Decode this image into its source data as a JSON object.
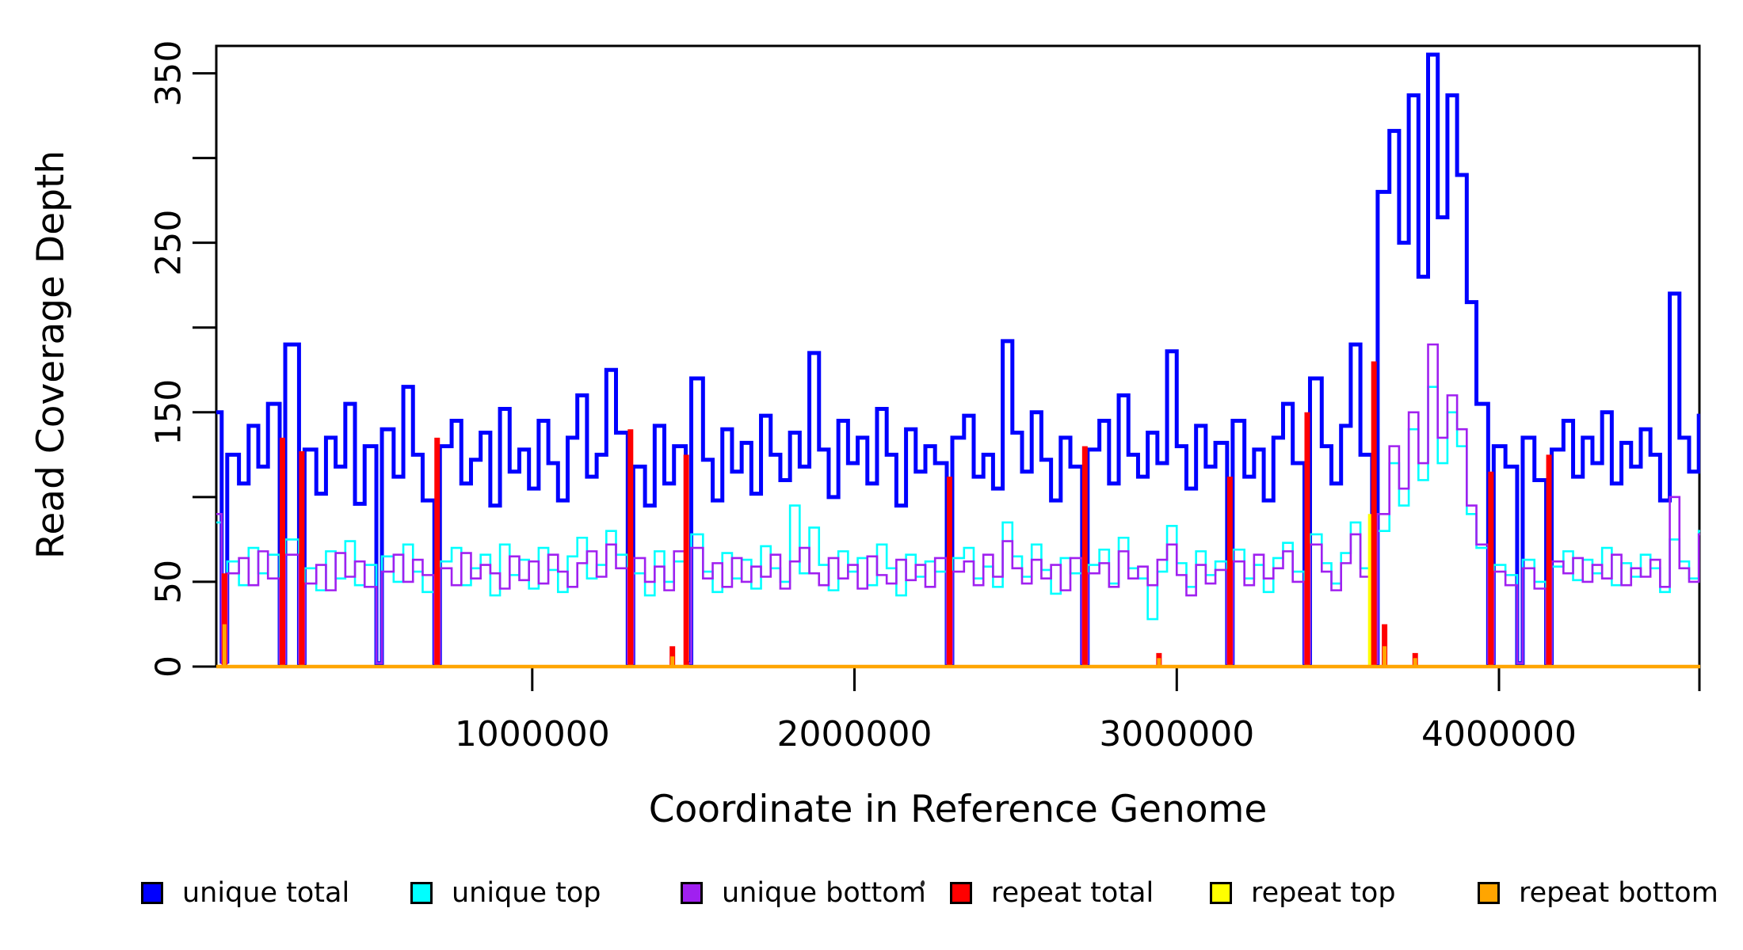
{
  "figure": {
    "background": "#ffffff",
    "axis_color": "#000000"
  },
  "chart_data": {
    "type": "line",
    "subtype": "step-coverage",
    "title": "",
    "xlabel": "Coordinate in Reference Genome",
    "ylabel": "Read Coverage Depth",
    "xlim": [
      0,
      4650000
    ],
    "ylim": [
      0,
      366
    ],
    "grid": false,
    "legend_position": "bottom",
    "bin_size": 30000,
    "x_ticks": [
      {
        "v": 1000000,
        "label": "1000000"
      },
      {
        "v": 2000000,
        "label": "2000000"
      },
      {
        "v": 3000000,
        "label": "3000000"
      },
      {
        "v": 4000000,
        "label": "4000000"
      },
      {
        "v": 4640000,
        "label": ""
      }
    ],
    "y_ticks": [
      {
        "v": 0,
        "label": "0"
      },
      {
        "v": 50,
        "label": "50"
      },
      {
        "v": 100,
        "label": ""
      },
      {
        "v": 150,
        "label": "150"
      },
      {
        "v": 200,
        "label": ""
      },
      {
        "v": 250,
        "label": "250"
      },
      {
        "v": 300,
        "label": ""
      },
      {
        "v": 350,
        "label": "350"
      }
    ],
    "series": [
      {
        "name": "unique total",
        "color": "#0000FF",
        "width": 5,
        "values": [
          150,
          3,
          125,
          108,
          142,
          118,
          155,
          2,
          190,
          2,
          128,
          102,
          135,
          118,
          155,
          96,
          130,
          2,
          140,
          112,
          165,
          125,
          98,
          2,
          130,
          145,
          108,
          122,
          138,
          95,
          152,
          115,
          128,
          105,
          145,
          120,
          98,
          135,
          160,
          112,
          125,
          175,
          138,
          2,
          118,
          95,
          142,
          108,
          130,
          2,
          170,
          122,
          98,
          140,
          115,
          132,
          102,
          148,
          125,
          110,
          138,
          118,
          185,
          128,
          100,
          145,
          120,
          135,
          108,
          152,
          125,
          95,
          140,
          115,
          130,
          120,
          2,
          135,
          148,
          112,
          125,
          105,
          192,
          138,
          115,
          150,
          122,
          98,
          135,
          118,
          2,
          128,
          145,
          108,
          160,
          125,
          112,
          138,
          120,
          186,
          130,
          105,
          142,
          118,
          132,
          2,
          145,
          112,
          128,
          98,
          135,
          155,
          120,
          2,
          170,
          130,
          108,
          142,
          190,
          125,
          2,
          280,
          316,
          250,
          337,
          230,
          361,
          265,
          337,
          290,
          215,
          155,
          2,
          130,
          118,
          2,
          135,
          110,
          2,
          128,
          145,
          112,
          135,
          120,
          150,
          108,
          132,
          118,
          140,
          125,
          98,
          220,
          135,
          115,
          148
        ]
      },
      {
        "name": "unique top",
        "color": "#00FFFF",
        "width": 2.6,
        "values": [
          85,
          2,
          62,
          48,
          70,
          55,
          66,
          2,
          75,
          2,
          58,
          45,
          68,
          52,
          74,
          48,
          60,
          2,
          65,
          50,
          72,
          56,
          44,
          2,
          62,
          70,
          48,
          58,
          66,
          42,
          72,
          54,
          63,
          46,
          70,
          57,
          44,
          65,
          76,
          52,
          60,
          80,
          66,
          2,
          55,
          42,
          68,
          50,
          62,
          2,
          78,
          56,
          44,
          67,
          52,
          63,
          46,
          71,
          58,
          50,
          95,
          55,
          82,
          60,
          45,
          68,
          56,
          64,
          48,
          72,
          58,
          42,
          66,
          53,
          62,
          56,
          2,
          64,
          70,
          52,
          59,
          47,
          85,
          65,
          53,
          72,
          57,
          43,
          64,
          55,
          2,
          60,
          69,
          49,
          76,
          58,
          52,
          28,
          56,
          83,
          61,
          47,
          68,
          54,
          62,
          2,
          69,
          52,
          60,
          44,
          64,
          73,
          56,
          2,
          78,
          61,
          49,
          67,
          85,
          58,
          2,
          80,
          120,
          95,
          140,
          110,
          165,
          120,
          150,
          130,
          90,
          70,
          2,
          60,
          54,
          2,
          63,
          50,
          2,
          59,
          68,
          51,
          63,
          55,
          70,
          48,
          61,
          53,
          66,
          58,
          44,
          75,
          62,
          52,
          80
        ]
      },
      {
        "name": "unique bottom",
        "color": "#A020F0",
        "width": 2.6,
        "values": [
          90,
          2,
          55,
          64,
          48,
          68,
          52,
          2,
          66,
          2,
          49,
          60,
          45,
          67,
          53,
          62,
          47,
          2,
          56,
          66,
          50,
          63,
          54,
          2,
          58,
          48,
          67,
          52,
          60,
          55,
          46,
          65,
          51,
          62,
          49,
          66,
          56,
          47,
          61,
          68,
          53,
          72,
          58,
          2,
          64,
          50,
          59,
          45,
          68,
          2,
          70,
          52,
          61,
          47,
          64,
          50,
          59,
          53,
          66,
          46,
          62,
          70,
          55,
          48,
          64,
          52,
          60,
          46,
          65,
          54,
          49,
          63,
          51,
          60,
          47,
          64,
          2,
          56,
          62,
          48,
          66,
          53,
          74,
          58,
          49,
          63,
          52,
          60,
          45,
          64,
          2,
          55,
          61,
          47,
          68,
          52,
          59,
          48,
          63,
          72,
          54,
          42,
          60,
          49,
          57,
          2,
          62,
          48,
          66,
          52,
          58,
          68,
          50,
          2,
          72,
          56,
          45,
          61,
          78,
          53,
          2,
          90,
          130,
          105,
          150,
          120,
          190,
          135,
          160,
          140,
          95,
          72,
          2,
          56,
          48,
          2,
          58,
          46,
          2,
          62,
          55,
          64,
          50,
          60,
          52,
          66,
          48,
          58,
          53,
          63,
          47,
          100,
          58,
          50,
          78
        ]
      }
    ],
    "repeat": {
      "note": "repeat series lie on zero baseline except at spikes",
      "colors": {
        "total": "#FF0000",
        "top": "#FFFF00",
        "bottom": "#FFA500"
      },
      "baseline": 0,
      "spikes": [
        {
          "x": 45000,
          "total": 55,
          "top": 0,
          "bottom": 25
        },
        {
          "x": 225000,
          "total": 135,
          "top": 0,
          "bottom": 0
        },
        {
          "x": 285000,
          "total": 127,
          "top": 0,
          "bottom": 0
        },
        {
          "x": 705000,
          "total": 135,
          "top": 0,
          "bottom": 0
        },
        {
          "x": 1305000,
          "total": 140,
          "top": 0,
          "bottom": 0
        },
        {
          "x": 1435000,
          "total": 12,
          "top": 0,
          "bottom": 6
        },
        {
          "x": 1478000,
          "total": 125,
          "top": 0,
          "bottom": 0
        },
        {
          "x": 2295000,
          "total": 112,
          "top": 0,
          "bottom": 0
        },
        {
          "x": 2715000,
          "total": 130,
          "top": 0,
          "bottom": 0
        },
        {
          "x": 2945000,
          "total": 8,
          "top": 0,
          "bottom": 5
        },
        {
          "x": 3165000,
          "total": 112,
          "top": 0,
          "bottom": 0
        },
        {
          "x": 3405000,
          "total": 150,
          "top": 0,
          "bottom": 0
        },
        {
          "x": 3612000,
          "total": 180,
          "top": 90,
          "bottom": 0
        },
        {
          "x": 3645000,
          "total": 25,
          "top": 0,
          "bottom": 12
        },
        {
          "x": 3740000,
          "total": 8,
          "top": 0,
          "bottom": 5
        },
        {
          "x": 3975000,
          "total": 115,
          "top": 0,
          "bottom": 0
        },
        {
          "x": 4155000,
          "total": 125,
          "top": 0,
          "bottom": 0
        }
      ]
    }
  },
  "legend": {
    "items": [
      {
        "label": "unique total",
        "color": "#0000FF",
        "x": 178
      },
      {
        "label": "unique top",
        "color": "#00FFFF",
        "x": 518
      },
      {
        "label": "unique bottom",
        "color": "#A020F0",
        "x": 859
      },
      {
        "label": "repeat total",
        "color": "#FF0000",
        "x": 1199
      },
      {
        "label": "repeat top",
        "color": "#FFFF00",
        "x": 1527
      },
      {
        "label": "repeat bottom",
        "color": "#FFA500",
        "x": 1865
      }
    ]
  }
}
